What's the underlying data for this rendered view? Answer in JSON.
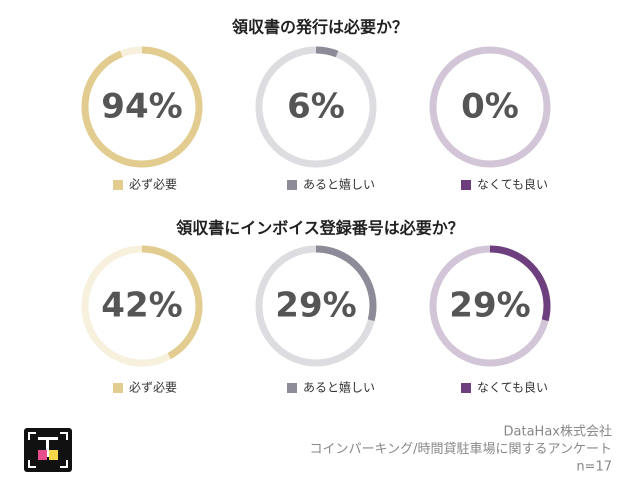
{
  "chart_data": [
    {
      "type": "ring",
      "title": "領収書の発行は必要か？",
      "categories": [
        "必ず必要",
        "あると嬉しい",
        "なくても良い"
      ],
      "values": [
        94,
        6,
        0
      ],
      "value_labels": [
        "94%",
        "6%",
        "0%"
      ],
      "colors": [
        "#e2cc8f",
        "#8e8b99",
        "#6e3f7e"
      ]
    },
    {
      "type": "ring",
      "title": "領収書にインボイス登録番号は必要か？",
      "categories": [
        "必ず必要",
        "あると嬉しい",
        "なくても良い"
      ],
      "values": [
        42,
        29,
        29
      ],
      "value_labels": [
        "42%",
        "29%",
        "29%"
      ],
      "colors": [
        "#e2cc8f",
        "#8e8b99",
        "#6e3f7e"
      ]
    }
  ],
  "footer": {
    "lines": [
      "DataHax株式会社",
      "コインパーキング/時間貸駐車場に関するアンケート",
      "n=17"
    ]
  }
}
